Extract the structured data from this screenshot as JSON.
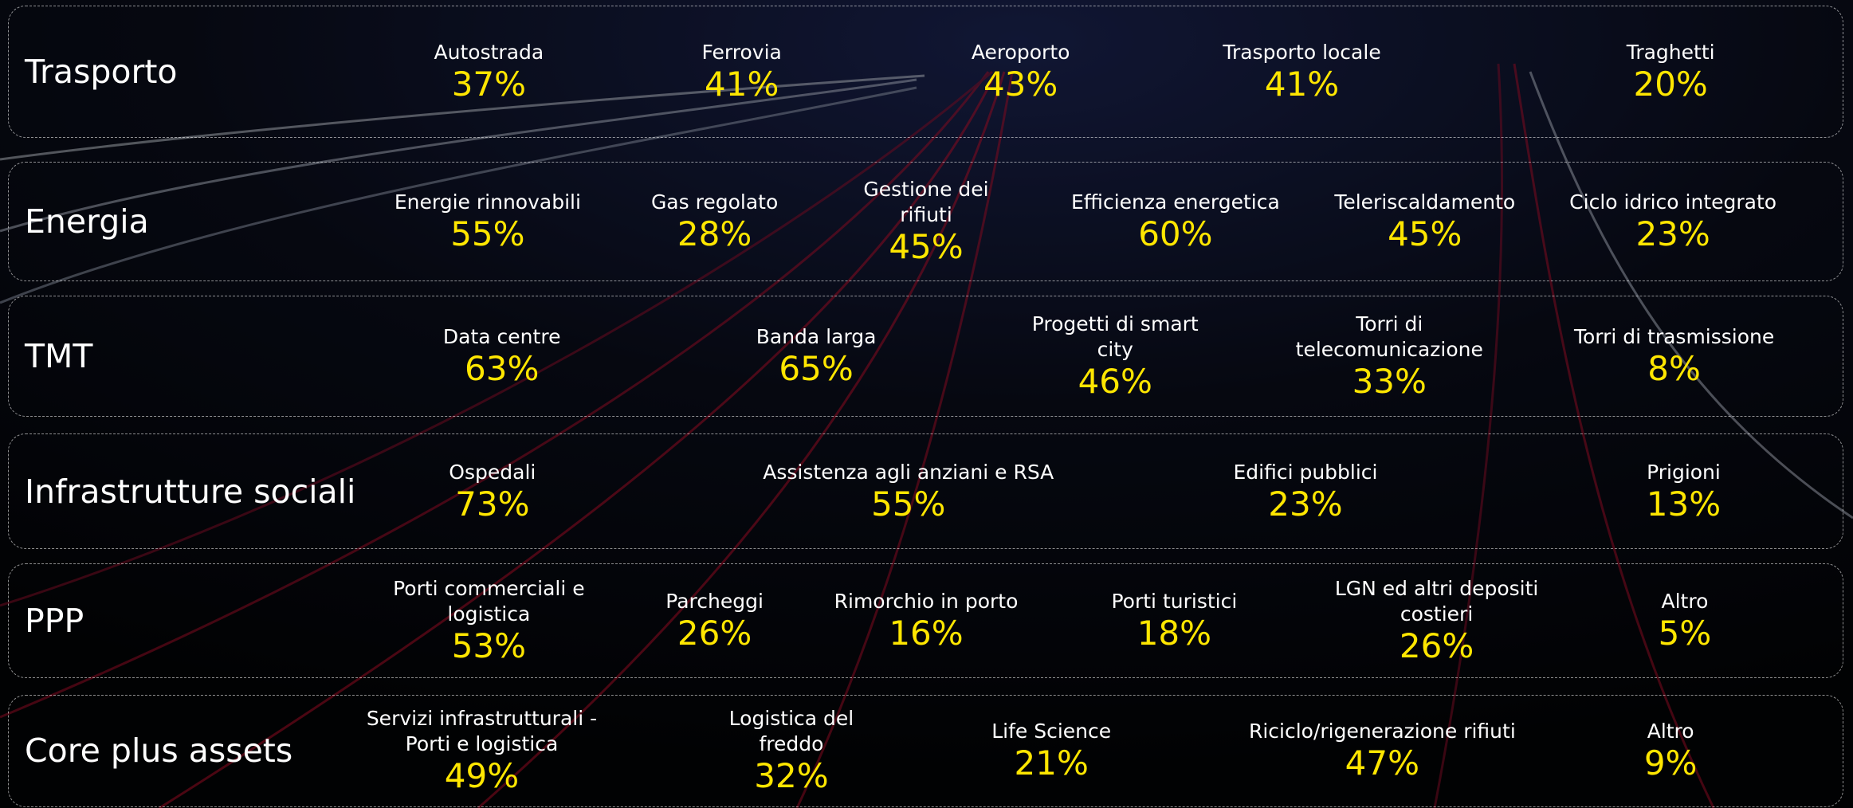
{
  "sectors": [
    {
      "title": "Trasporto",
      "items": [
        {
          "label": "Autostrada",
          "value": "37%"
        },
        {
          "label": "Ferrovia",
          "value": "41%"
        },
        {
          "label": "Aeroporto",
          "value": "43%"
        },
        {
          "label": "Trasporto locale",
          "value": "41%"
        },
        {
          "label": "Traghetti",
          "value": "20%"
        }
      ]
    },
    {
      "title": "Energia",
      "items": [
        {
          "label": "Energie rinnovabili",
          "value": "55%"
        },
        {
          "label": "Gas regolato",
          "value": "28%"
        },
        {
          "label": "Gestione dei rifiuti",
          "value": "45%"
        },
        {
          "label": "Efficienza energetica",
          "value": "60%"
        },
        {
          "label": "Teleriscaldamento",
          "value": "45%"
        },
        {
          "label": "Ciclo idrico integrato",
          "value": "23%"
        }
      ]
    },
    {
      "title": "TMT",
      "items": [
        {
          "label": "Data centre",
          "value": "63%"
        },
        {
          "label": "Banda larga",
          "value": "65%"
        },
        {
          "label": "Progetti di smart city",
          "value": "46%"
        },
        {
          "label": "Torri di telecomunicazione",
          "value": "33%"
        },
        {
          "label": "Torri di trasmissione",
          "value": "8%"
        }
      ]
    },
    {
      "title": "Infrastrutture sociali",
      "items": [
        {
          "label": "Ospedali",
          "value": "73%"
        },
        {
          "label": "Assistenza agli anziani e RSA",
          "value": "55%"
        },
        {
          "label": "Edifici pubblici",
          "value": "23%"
        },
        {
          "label": "Prigioni",
          "value": "13%"
        }
      ]
    },
    {
      "title": "PPP",
      "items": [
        {
          "label": "Porti commerciali e logistica",
          "value": "53%"
        },
        {
          "label": "Parcheggi",
          "value": "26%"
        },
        {
          "label": "Rimorchio in porto",
          "value": "16%"
        },
        {
          "label": "Porti turistici",
          "value": "18%"
        },
        {
          "label": "LGN ed altri depositi costieri",
          "value": "26%"
        },
        {
          "label": "Altro",
          "value": "5%"
        }
      ]
    },
    {
      "title": "Core plus assets",
      "items": [
        {
          "label": "Servizi infrastrutturali - Porti e logistica",
          "value": "49%"
        },
        {
          "label": "Logistica del freddo",
          "value": "32%"
        },
        {
          "label": "Life Science",
          "value": "21%"
        },
        {
          "label": "Riciclo/rigenerazione rifiuti",
          "value": "47%"
        },
        {
          "label": "Altro",
          "value": "9%"
        }
      ]
    }
  ]
}
